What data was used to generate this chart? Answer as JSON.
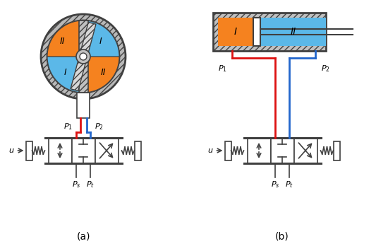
{
  "fig_width": 5.5,
  "fig_height": 3.48,
  "dpi": 100,
  "bg_color": "#ffffff",
  "orange_color": "#F5821F",
  "blue_color": "#5BB8E8",
  "dark_gray": "#404040",
  "mid_gray": "#909090",
  "hatch_gray": "#b0b0b0",
  "red_color": "#DD1111",
  "blue_line_color": "#2266CC",
  "label_a": "(a)",
  "label_b": "(b)",
  "P1_label": "$P_1$",
  "P2_label": "$P_2$",
  "Ps_label": "$P_s$",
  "Pt_label": "$P_t$",
  "u_label": "$u$"
}
